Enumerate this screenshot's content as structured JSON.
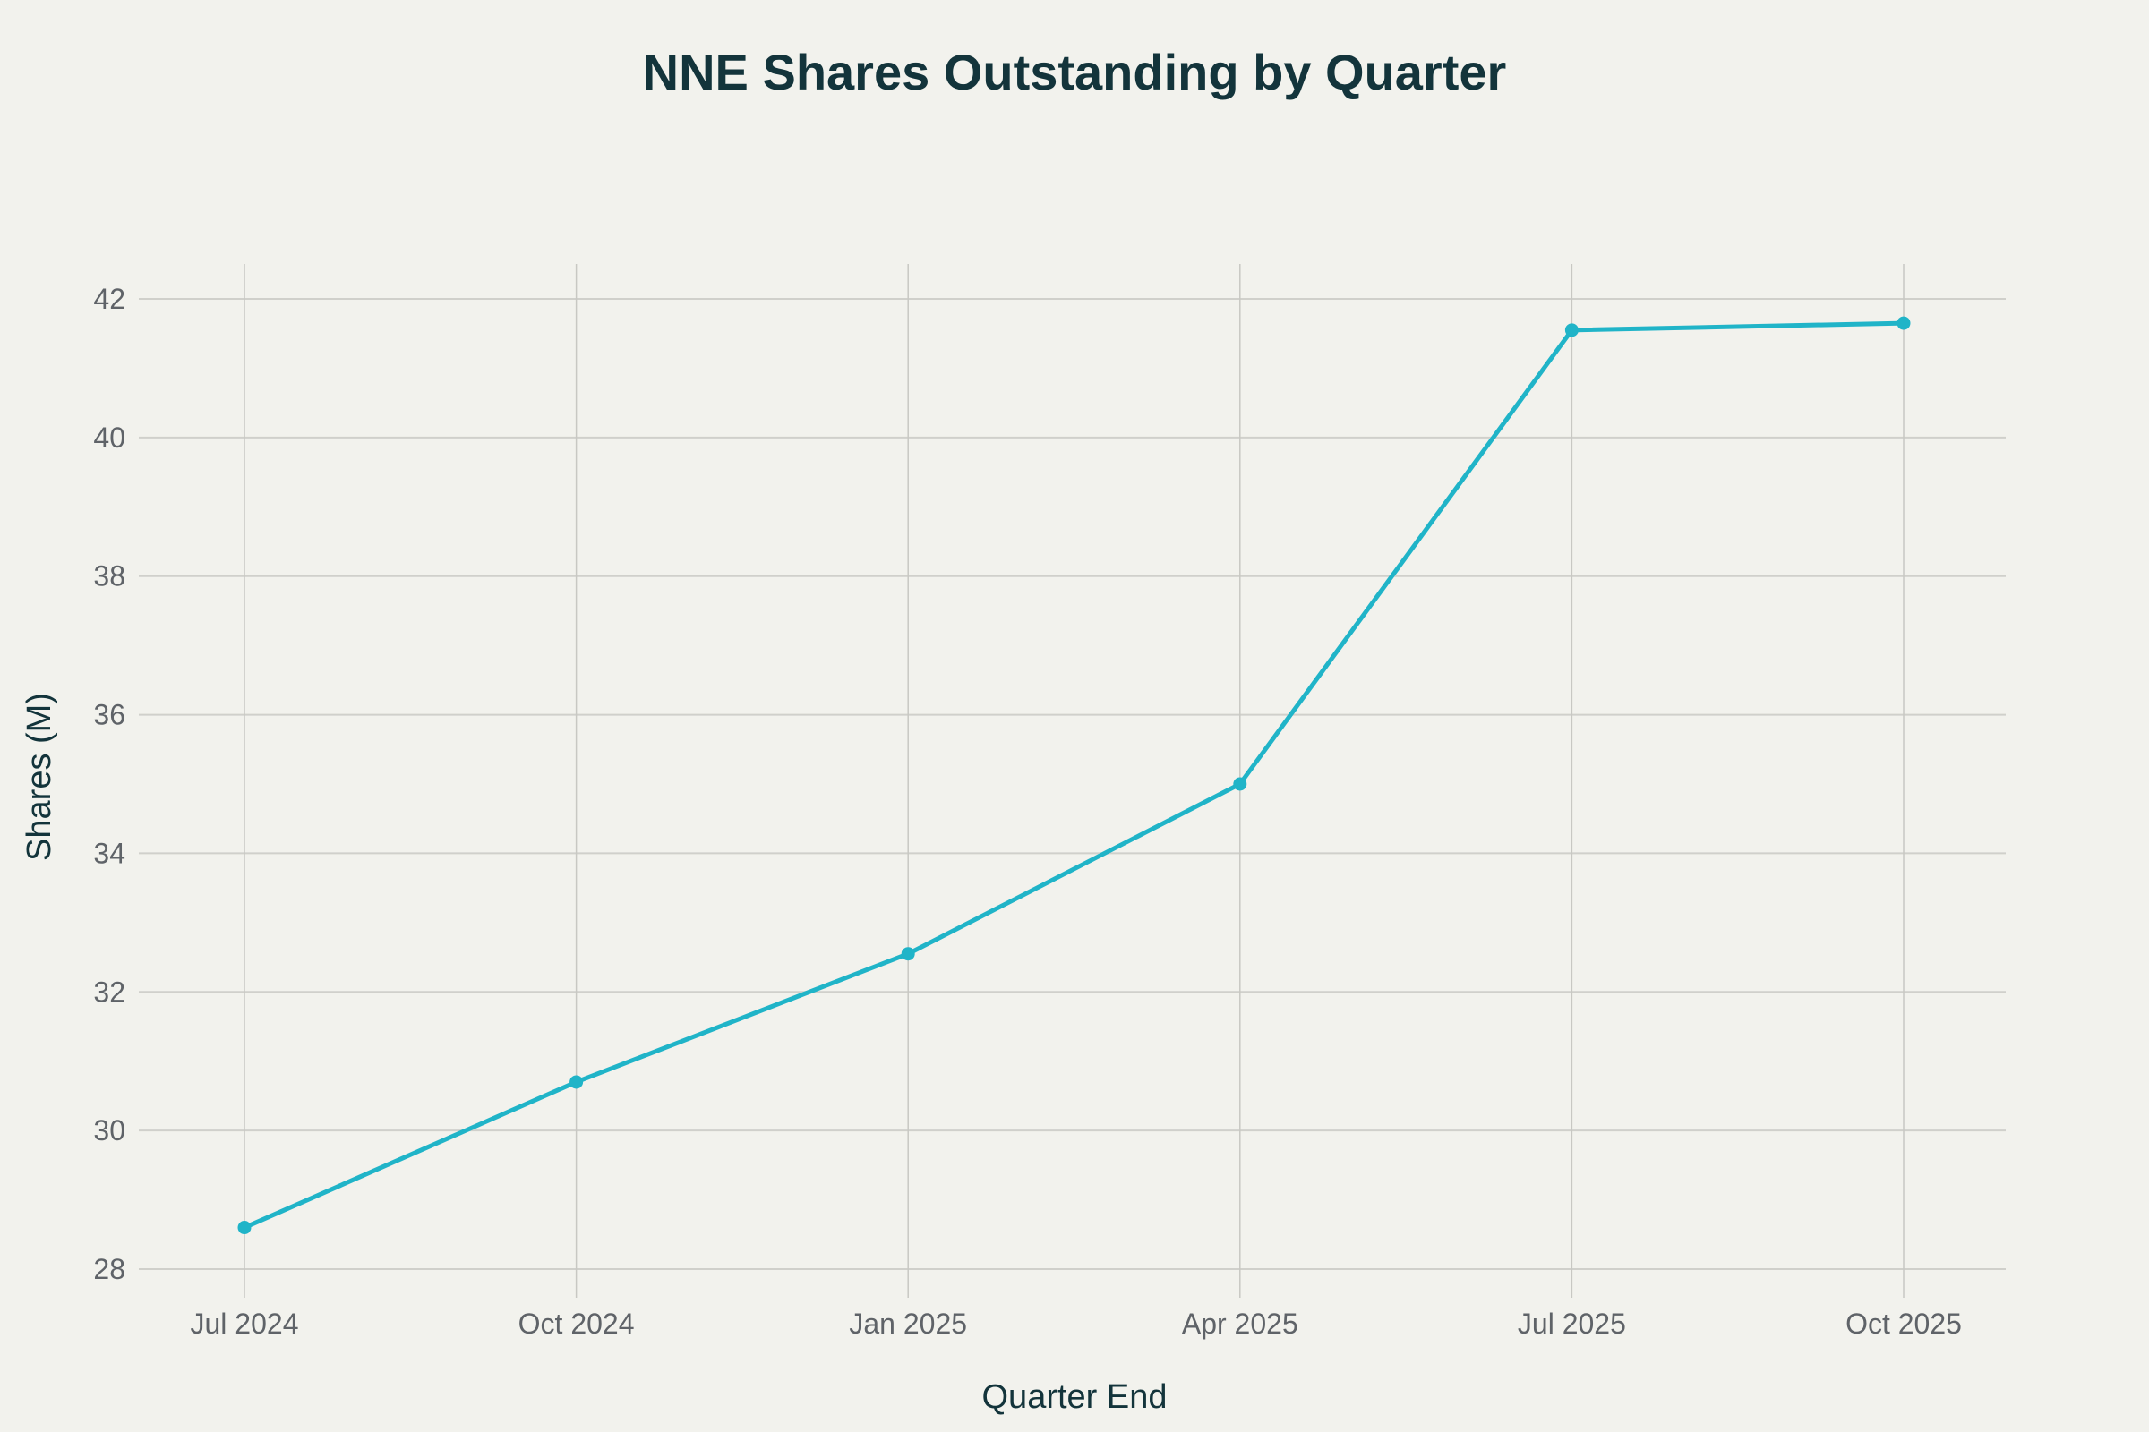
{
  "chart_data": {
    "type": "line",
    "title": "NNE Shares Outstanding by Quarter",
    "xlabel": "Quarter End",
    "ylabel": "Shares (M)",
    "categories": [
      "Jul 2024",
      "Oct 2024",
      "Jan 2025",
      "Apr 2025",
      "Jul 2025",
      "Oct 2025"
    ],
    "series": [
      {
        "name": "Shares Outstanding",
        "color": "#20b4c8",
        "values": [
          28.6,
          30.7,
          32.55,
          35.0,
          41.55,
          41.65
        ]
      }
    ],
    "ylim": [
      27.8,
      42.5
    ],
    "yticks": [
      28,
      30,
      32,
      34,
      36,
      38,
      40,
      42
    ],
    "grid": true,
    "legend": "none"
  }
}
